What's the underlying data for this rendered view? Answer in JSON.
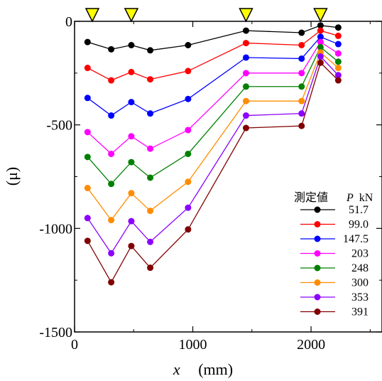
{
  "chart_data": {
    "type": "line",
    "xlabel_var": "x",
    "xlabel_unit": "(mm)",
    "ylabel": "(μ)",
    "xlim": [
      0,
      2600
    ],
    "ylim": [
      -1500,
      0
    ],
    "xticks": [
      0,
      1000,
      2000
    ],
    "yticks": [
      0,
      -500,
      -1000,
      -1500
    ],
    "grid": false,
    "legend_position": "right",
    "legend_title": "測定値",
    "legend_param_var": "P",
    "legend_param_unit": "kN",
    "markers_x": [
      150,
      480,
      1450,
      2080
    ],
    "markers_color": "#ffff00",
    "x": [
      110,
      310,
      480,
      640,
      960,
      1450,
      1920,
      2080,
      2230
    ],
    "series": [
      {
        "name": "51.7",
        "color": "#000000",
        "values": [
          -100,
          -135,
          -115,
          -140,
          -115,
          -45,
          -55,
          -20,
          -30
        ]
      },
      {
        "name": "99.0",
        "color": "#ff0000",
        "values": [
          -225,
          -285,
          -245,
          -280,
          -240,
          -105,
          -115,
          -45,
          -70
        ]
      },
      {
        "name": "147.5",
        "color": "#0000ff",
        "values": [
          -370,
          -455,
          -390,
          -445,
          -375,
          -175,
          -180,
          -75,
          -110
        ]
      },
      {
        "name": "203",
        "color": "#ff00ff",
        "values": [
          -535,
          -640,
          -555,
          -615,
          -525,
          -250,
          -250,
          -100,
          -155
        ]
      },
      {
        "name": "248",
        "color": "#008000",
        "values": [
          -655,
          -785,
          -680,
          -755,
          -640,
          -315,
          -315,
          -125,
          -195
        ]
      },
      {
        "name": "300",
        "color": "#ff8c00",
        "values": [
          -805,
          -960,
          -830,
          -915,
          -775,
          -385,
          -385,
          -150,
          -225
        ]
      },
      {
        "name": "353",
        "color": "#8b00ff",
        "values": [
          -950,
          -1120,
          -965,
          -1065,
          -900,
          -455,
          -445,
          -170,
          -260
        ]
      },
      {
        "name": "391",
        "color": "#800000",
        "values": [
          -1060,
          -1260,
          -1085,
          -1190,
          -1005,
          -515,
          -505,
          -200,
          -285
        ]
      }
    ]
  }
}
